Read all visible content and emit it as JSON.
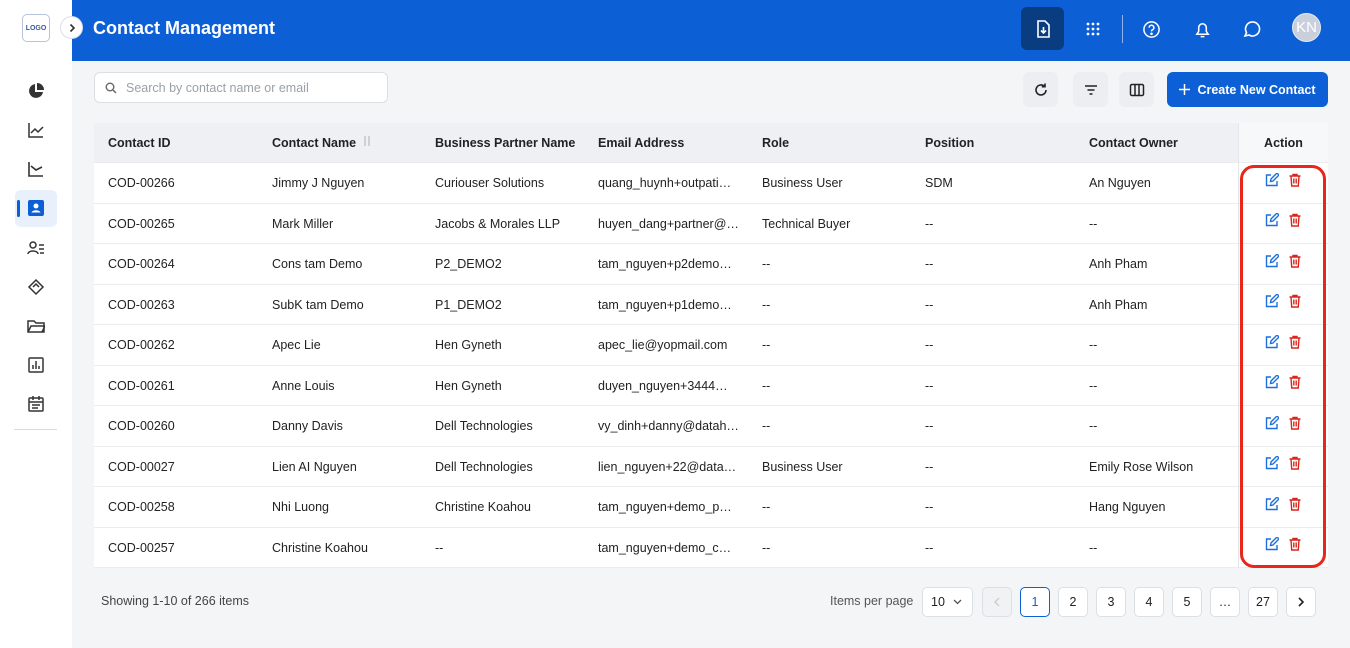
{
  "sidebar": {
    "logo": "LOGO"
  },
  "header": {
    "title": "Contact Management",
    "avatar": "KN"
  },
  "toolbar": {
    "search_placeholder": "Search by contact name or email",
    "create_button": "Create New Contact"
  },
  "table": {
    "columns": [
      "Contact ID",
      "Contact Name",
      "Business Partner Name",
      "Email Address",
      "Role",
      "Position",
      "Contact Owner",
      "Action"
    ],
    "rows": [
      [
        "COD-00266",
        "Jimmy J Nguyen",
        "Curiouser Solutions",
        "quang_huynh+outpati…",
        "Business User",
        "SDM",
        "An Nguyen"
      ],
      [
        "COD-00265",
        "Mark Miller",
        "Jacobs & Morales LLP",
        "huyen_dang+partner@…",
        "Technical Buyer",
        "--",
        "--"
      ],
      [
        "COD-00264",
        "Cons tam Demo",
        "P2_DEMO2",
        "tam_nguyen+p2demo…",
        "--",
        "--",
        "Anh Pham"
      ],
      [
        "COD-00263",
        "SubK tam Demo",
        "P1_DEMO2",
        "tam_nguyen+p1demo…",
        "--",
        "--",
        "Anh Pham"
      ],
      [
        "COD-00262",
        "Apec Lie",
        "Hen Gyneth",
        "apec_lie@yopmail.com",
        "--",
        "--",
        "--"
      ],
      [
        "COD-00261",
        "Anne Louis",
        "Hen Gyneth",
        "duyen_nguyen+3444…",
        "--",
        "--",
        "--"
      ],
      [
        "COD-00260",
        "Danny Davis",
        "Dell Technologies",
        "vy_dinh+danny@datah…",
        "--",
        "--",
        "--"
      ],
      [
        "COD-00027",
        "Lien AI Nguyen",
        "Dell Technologies",
        "lien_nguyen+22@data…",
        "Business User",
        "--",
        "Emily Rose Wilson"
      ],
      [
        "COD-00258",
        "Nhi Luong",
        "Christine Koahou",
        "tam_nguyen+demo_p…",
        "--",
        "--",
        "Hang Nguyen"
      ],
      [
        "COD-00257",
        "Christine Koahou",
        "--",
        "tam_nguyen+demo_c…",
        "--",
        "--",
        "--"
      ]
    ]
  },
  "footer": {
    "summary": "Showing 1-10 of 266 items",
    "items_per_page_label": "Items per page",
    "items_per_page": "10",
    "pages": [
      "1",
      "2",
      "3",
      "4",
      "5",
      "…",
      "27"
    ]
  }
}
